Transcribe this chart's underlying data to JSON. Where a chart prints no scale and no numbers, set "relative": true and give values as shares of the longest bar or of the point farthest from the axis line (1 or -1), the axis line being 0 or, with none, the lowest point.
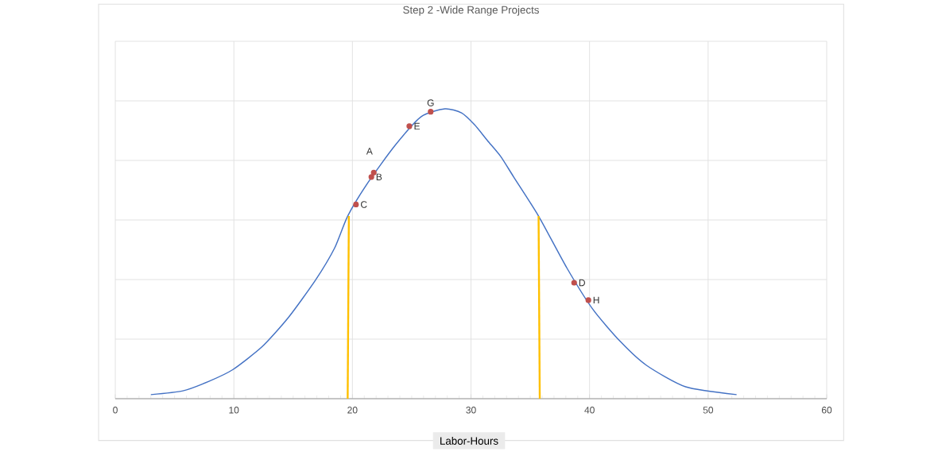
{
  "chart_data": {
    "type": "line",
    "title": "Step 2 -Wide Range Projects",
    "xlabel": "Labor-Hours",
    "relative": true,
    "xlim": [
      0,
      60
    ],
    "xticks": [
      0,
      10,
      20,
      30,
      40,
      50,
      60
    ],
    "grid": true,
    "series": [
      {
        "color": "#4472c4",
        "x": [
          3.0,
          5.7,
          7.9,
          9.9,
          12.4,
          14.6,
          16.9,
          18.5,
          19.6,
          21.3,
          23.6,
          25.8,
          27.8,
          29.2,
          30.3,
          31.4,
          32.5,
          33.6,
          35.7,
          38.1,
          40.3,
          42.6,
          44.8,
          48.1,
          52.4
        ],
        "values": [
          0.014,
          0.027,
          0.06,
          0.1,
          0.18,
          0.28,
          0.41,
          0.52,
          0.63,
          0.745,
          0.874,
          0.973,
          1.0,
          0.986,
          0.945,
          0.89,
          0.836,
          0.765,
          0.63,
          0.45,
          0.307,
          0.197,
          0.115,
          0.041,
          0.014
        ]
      },
      {
        "type": "line",
        "color": "#ffc000",
        "x": [
          19.7,
          19.6
        ],
        "values": [
          0.63,
          0
        ]
      },
      {
        "type": "line",
        "color": "#ffc000",
        "x": [
          35.7,
          35.8
        ],
        "values": [
          0.63,
          0
        ]
      },
      {
        "type": "scatter",
        "color": "#c0504d",
        "marker": "circle",
        "x": [
          21.8,
          21.6,
          20.3,
          38.7,
          24.8,
          26.6,
          39.9
        ],
        "values": [
          0.78,
          0.765,
          0.67,
          0.4,
          0.94,
          0.99,
          0.34
        ]
      }
    ],
    "annotations": [
      {
        "text": "A",
        "x": 21.8,
        "y": 0.78
      },
      {
        "text": "B",
        "x": 21.6,
        "y": 0.765
      },
      {
        "text": "C",
        "x": 20.3,
        "y": 0.67
      },
      {
        "text": "D",
        "x": 38.7,
        "y": 0.4
      },
      {
        "text": "E",
        "x": 24.8,
        "y": 0.94
      },
      {
        "text": "G",
        "x": 26.6,
        "y": 0.99
      },
      {
        "text": "H",
        "x": 39.9,
        "y": 0.34
      }
    ]
  }
}
